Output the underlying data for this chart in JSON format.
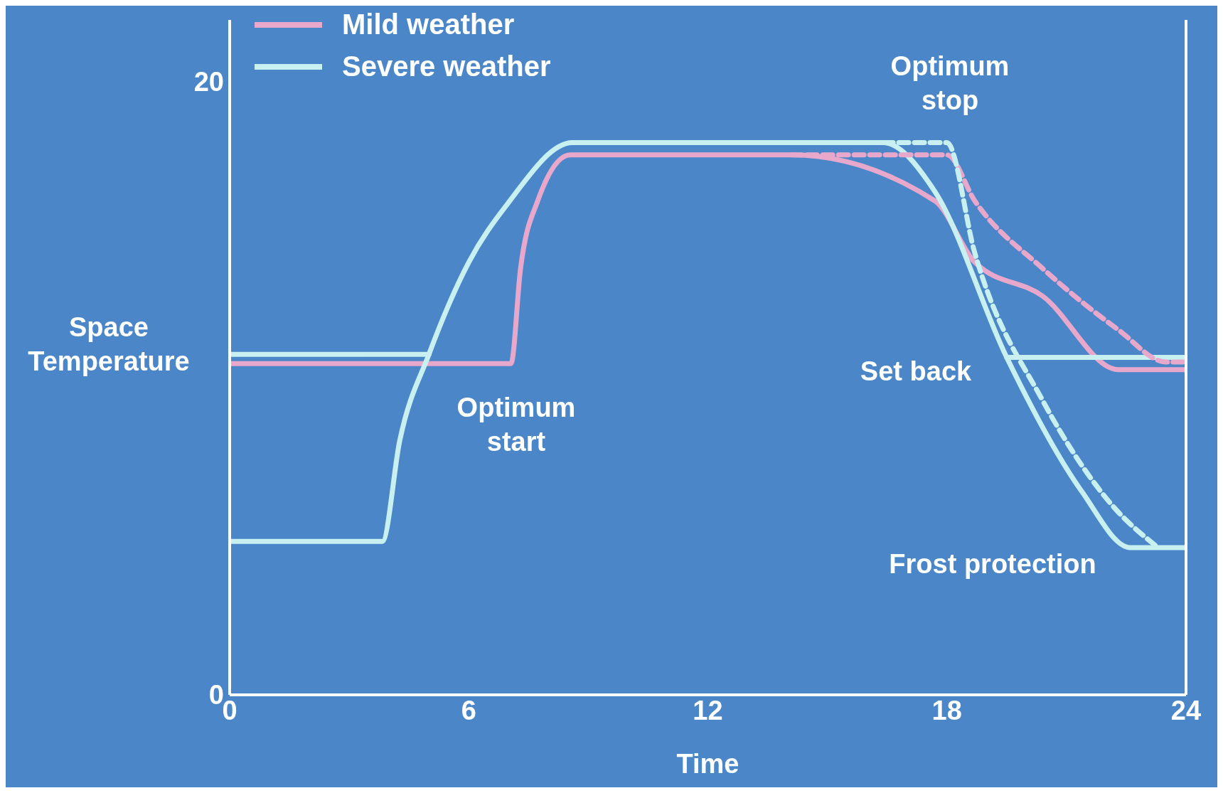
{
  "chart_data": {
    "type": "line",
    "xlabel": "Time",
    "ylabel": "Space Temperature",
    "xlim": [
      0,
      24
    ],
    "xticks": [
      0,
      6,
      12,
      18,
      24
    ],
    "ylim": [
      0,
      22
    ],
    "yticks": [
      0,
      20
    ],
    "grid": false,
    "legend": "top left",
    "marker": "none",
    "series": [
      {
        "name": "Mild weather",
        "color": "#e8a8cc",
        "line_style": "solid",
        "x": [
          0,
          7.06,
          7.3,
          7.73,
          8.55,
          14.1,
          17.7,
          18.7,
          20.4,
          22.3,
          24
        ],
        "values": [
          10.8,
          10.8,
          13.9,
          16.1,
          17.6,
          17.6,
          16.1,
          14.1,
          13.0,
          10.6,
          10.6
        ]
      },
      {
        "name": "Severe weather",
        "color": "#c8f0f0",
        "line_style": "solid",
        "x": [
          0,
          3.83,
          4.27,
          5.0,
          6.0,
          6.97,
          8.6,
          16.4,
          17.7,
          19.5,
          21.4,
          22.6,
          24
        ],
        "values": [
          5.0,
          5.0,
          8.3,
          11.1,
          14.1,
          16.0,
          18.0,
          18.0,
          16.4,
          11.0,
          6.6,
          4.8,
          4.8
        ]
      },
      {
        "color": "#c8f0f0",
        "line_style": "solid",
        "x": [
          0,
          5.0
        ],
        "values": [
          11.1,
          11.1
        ]
      },
      {
        "color": "#c8f0f0",
        "line_style": "solid",
        "x": [
          19.5,
          24
        ],
        "values": [
          11.0,
          11.0
        ]
      },
      {
        "color": "#e8a8cc",
        "line_style": "dashed",
        "x": [
          14.1,
          18.0,
          18.7,
          20.4,
          22.3,
          23.5,
          24
        ],
        "values": [
          17.6,
          17.6,
          16.1,
          13.9,
          11.9,
          10.85,
          10.85
        ]
      },
      {
        "color": "#c8f0f0",
        "line_style": "dashed",
        "x": [
          16.4,
          18.0,
          18.7,
          20.4,
          22.2,
          23.3
        ],
        "values": [
          18.0,
          18.0,
          14.4,
          9.6,
          6.1,
          4.8
        ]
      }
    ],
    "annotations": [
      "Optimum\nstart",
      "Optimum\nstop",
      "Set back",
      "Frost protection"
    ]
  }
}
